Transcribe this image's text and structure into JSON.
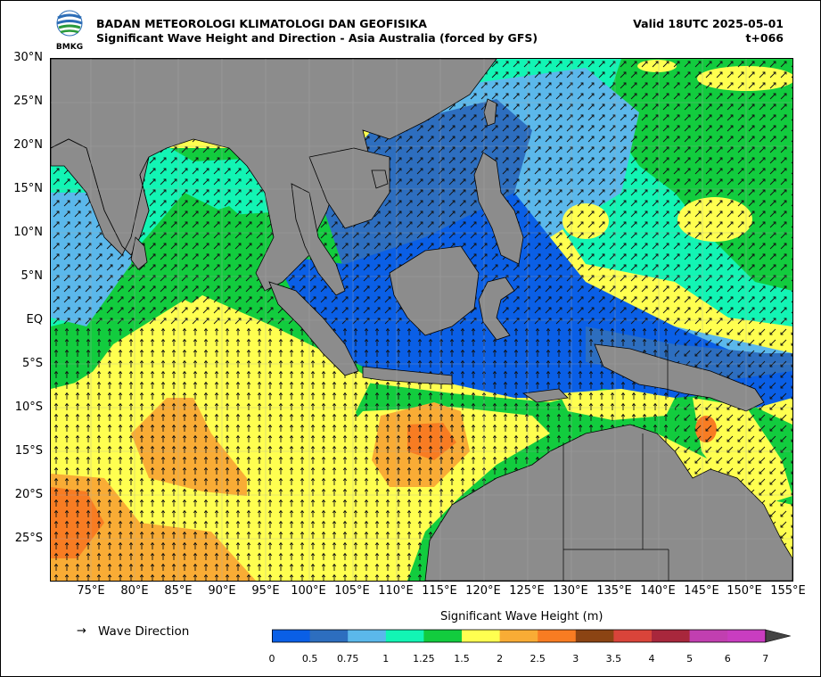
{
  "header": {
    "agency": "BADAN METEOROLOGI KLIMATOLOGI DAN GEOFISIKA",
    "subtitle": "Significant Wave Height and Direction - Asia Australia (forced by GFS)",
    "valid": "Valid 18UTC 2025-05-01",
    "lead": "t+066",
    "logo_text": "BMKG"
  },
  "map": {
    "lat_labels": [
      "30°N",
      "25°N",
      "20°N",
      "15°N",
      "10°N",
      "5°N",
      "EQ",
      "5°S",
      "10°S",
      "15°S",
      "20°S",
      "25°S"
    ],
    "lon_labels": [
      "75°E",
      "80°E",
      "85°E",
      "90°E",
      "95°E",
      "100°E",
      "105°E",
      "110°E",
      "115°E",
      "120°E",
      "125°E",
      "130°E",
      "135°E",
      "140°E",
      "145°E",
      "150°E",
      "155°E"
    ],
    "lat_range": [
      -30,
      30
    ],
    "lon_range": [
      70,
      155
    ],
    "grid": true
  },
  "legend": {
    "arrow_symbol": "→",
    "label": "Wave Direction"
  },
  "colorbar": {
    "title": "Significant Wave Height (m)",
    "ticks": [
      "0",
      "0.5",
      "0.75",
      "1",
      "1.25",
      "1.5",
      "2",
      "2.5",
      "3",
      "3.5",
      "4",
      "5",
      "6",
      "7"
    ],
    "colors": [
      "#0a5fe6",
      "#2d6ebf",
      "#5bb8eb",
      "#12f5b4",
      "#12cc3e",
      "#ffff50",
      "#f9ac35",
      "#f87c22",
      "#8b4413",
      "#d9443a",
      "#a8273c",
      "#c13fb0",
      "#c93dc0"
    ],
    "extend_max": true
  }
}
